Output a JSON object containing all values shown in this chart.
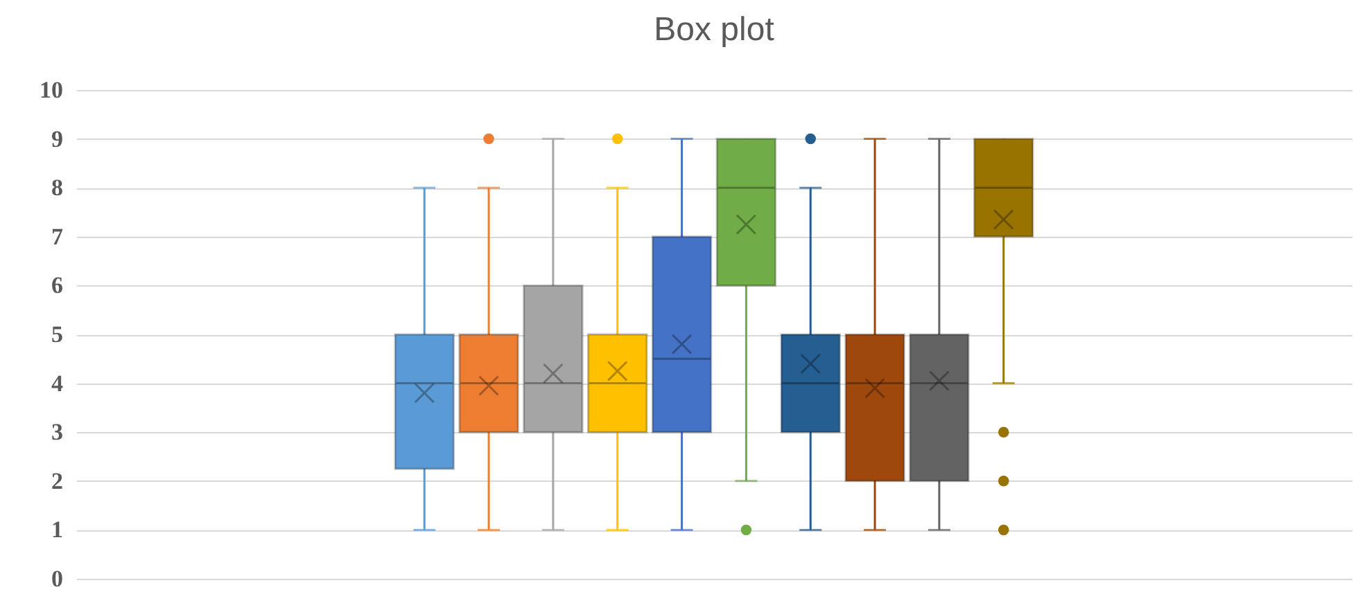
{
  "chart_data": {
    "type": "box",
    "title": "Box plot",
    "categories": [
      null
    ],
    "ylim": [
      0,
      10
    ],
    "yticks": [
      0,
      1,
      2,
      3,
      4,
      5,
      6,
      7,
      8,
      9,
      10
    ],
    "grid": "y",
    "tick_labels": "y",
    "series": [
      {
        "color": "#5b9bd5",
        "boxes": [
          {
            "low": 1,
            "q1": 2.25,
            "median": 4,
            "q3": 5,
            "high": 8,
            "mean": 3.8
          }
        ]
      },
      {
        "color": "#ed7d31",
        "boxes": [
          {
            "low": 1,
            "q1": 3,
            "median": 4,
            "q3": 5,
            "high": 8,
            "mean": 3.95,
            "outliers": [
              9
            ]
          }
        ]
      },
      {
        "color": "#a5a5a5",
        "boxes": [
          {
            "low": 1,
            "q1": 3,
            "median": 4,
            "q3": 6,
            "high": 9,
            "mean": 4.2
          }
        ]
      },
      {
        "color": "#ffc000",
        "boxes": [
          {
            "low": 1,
            "q1": 3,
            "median": 4,
            "q3": 5,
            "high": 8,
            "mean": 4.25,
            "outliers": [
              9
            ]
          }
        ]
      },
      {
        "color": "#4472c4",
        "boxes": [
          {
            "low": 1,
            "q1": 3,
            "median": 4.5,
            "q3": 7,
            "high": 9,
            "mean": 4.8
          }
        ]
      },
      {
        "color": "#70ad47",
        "boxes": [
          {
            "low": 2,
            "q1": 6,
            "median": 8,
            "q3": 9,
            "high": 9,
            "mean": 7.25,
            "outliers": [
              1
            ]
          }
        ]
      },
      {
        "color": "#255e91",
        "boxes": [
          {
            "low": 1,
            "q1": 3,
            "median": 4,
            "q3": 5,
            "high": 8,
            "mean": 4.4,
            "outliers": [
              9
            ]
          }
        ]
      },
      {
        "color": "#9e480e",
        "boxes": [
          {
            "low": 1,
            "q1": 2,
            "median": 4,
            "q3": 5,
            "high": 9,
            "mean": 3.9
          }
        ]
      },
      {
        "color": "#636363",
        "boxes": [
          {
            "low": 1,
            "q1": 2,
            "median": 4,
            "q3": 5,
            "high": 9,
            "mean": 4.05
          }
        ]
      },
      {
        "color": "#997300",
        "boxes": [
          {
            "low": 4,
            "q1": 7,
            "median": 8,
            "q3": 9,
            "high": 9,
            "mean": 7.35,
            "outliers": [
              3,
              2,
              1
            ]
          }
        ]
      }
    ]
  }
}
